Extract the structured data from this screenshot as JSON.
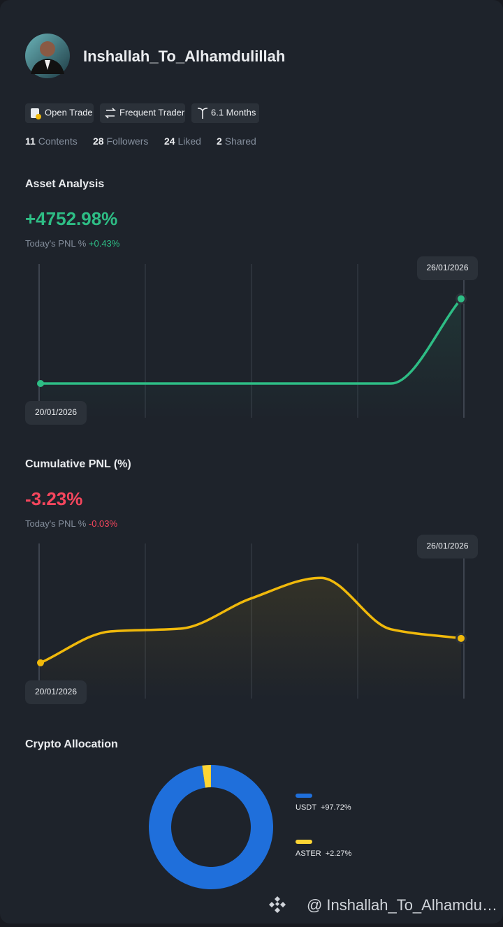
{
  "profile": {
    "username": "Inshallah_To_Alhamdulillah",
    "badges": [
      "Open Trade",
      "Frequent Trader",
      "6.1 Months"
    ],
    "stats": [
      {
        "value": 11,
        "label": "Contents"
      },
      {
        "value": 28,
        "label": "Followers"
      },
      {
        "value": 24,
        "label": "Liked"
      },
      {
        "value": 2,
        "label": "Shared"
      }
    ]
  },
  "chart_data": [
    {
      "type": "line",
      "title": "Asset Analysis",
      "headline": "+4752.98%",
      "today_label": "Today's PNL %",
      "today_value": "+0.43%",
      "categories": [
        "20/01/2026",
        null,
        null,
        null,
        null,
        null,
        "26/01/2026"
      ],
      "values": [
        0,
        0,
        0,
        0,
        0,
        0,
        4752.98
      ],
      "color": "#2ebd85",
      "ylim": [
        -2000,
        7000
      ]
    },
    {
      "type": "line",
      "title": "Cumulative PNL (%)",
      "headline": "-3.23%",
      "today_label": "Today's PNL %",
      "today_value": "-0.03%",
      "categories": [
        "20/01/2026",
        null,
        null,
        null,
        null,
        null,
        "26/01/2026"
      ],
      "values": [
        -7.6,
        -1.98,
        -1.48,
        3.9,
        7.6,
        -1.6,
        -3.23
      ],
      "color": "#f0b90b",
      "ylim": [
        -14,
        14
      ]
    },
    {
      "type": "pie",
      "title": "Crypto Allocation",
      "donut": true,
      "categories": [
        "USDT",
        "ASTER"
      ],
      "values": [
        97.72,
        2.27
      ],
      "value_labels": [
        "+97.72%",
        "+2.27%"
      ],
      "colors": [
        "#1f6fdb",
        "#fcd535"
      ]
    }
  ],
  "watermark": "@ Inshallah_To_Alhamdu…"
}
